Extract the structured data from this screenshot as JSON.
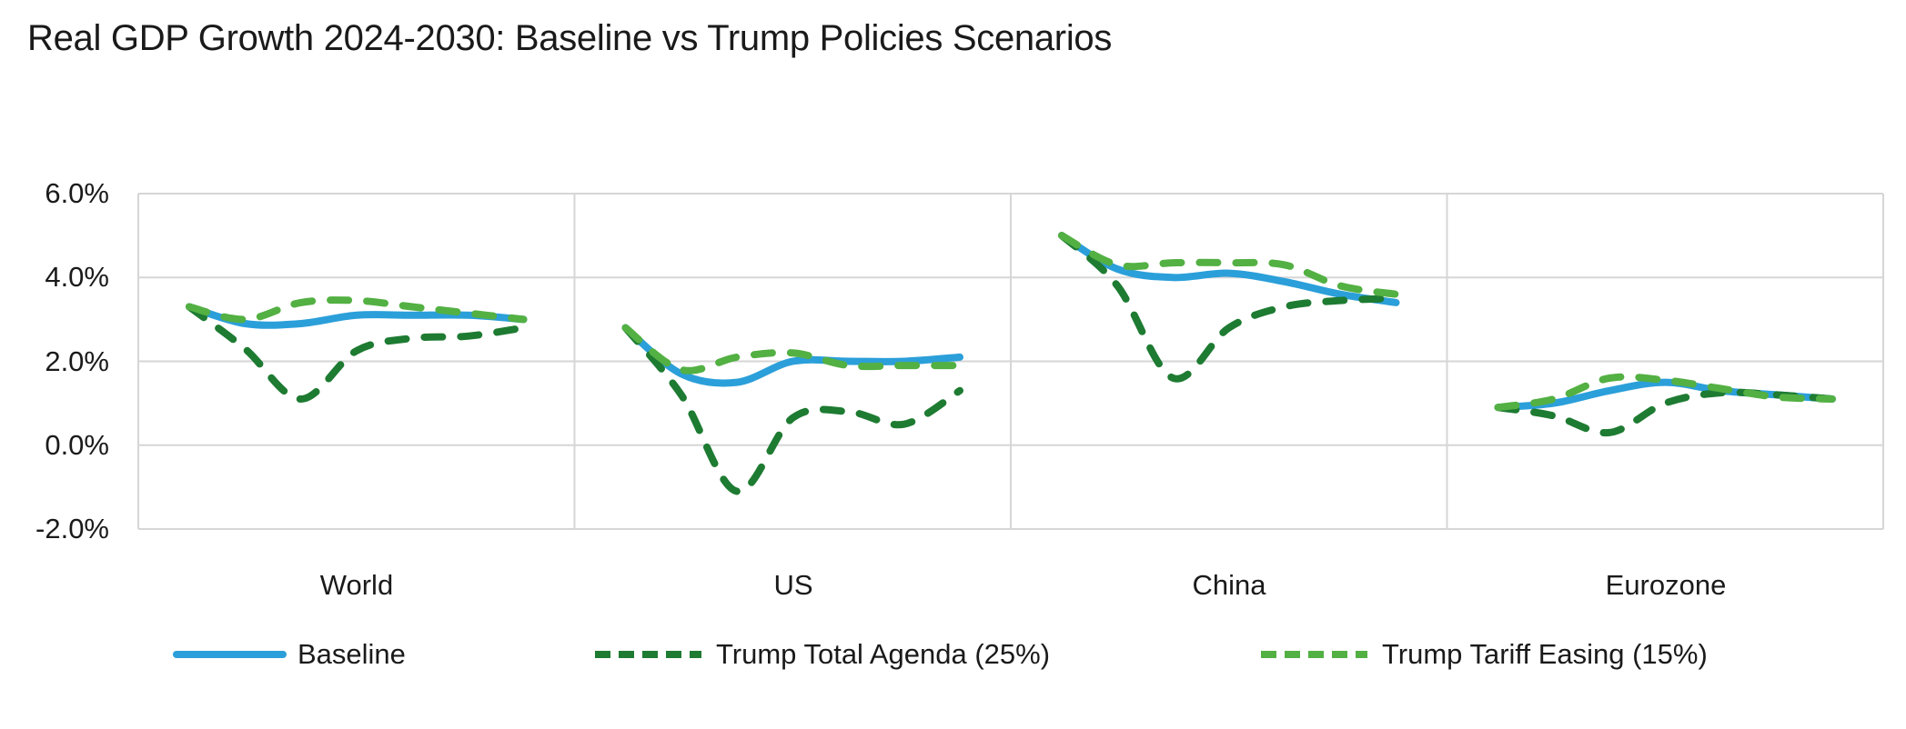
{
  "title": "Real GDP Growth 2024-2030: Baseline vs Trump Policies Scenarios",
  "y_axis": {
    "tick_labels": [
      "6.0%",
      "4.0%",
      "2.0%",
      "0.0%",
      "-2.0%"
    ],
    "tick_values": [
      6,
      4,
      2,
      0,
      -2
    ]
  },
  "x_axis": {
    "category_labels": [
      "World",
      "US",
      "China",
      "Eurozone"
    ]
  },
  "legend": {
    "items": [
      {
        "label": "Baseline",
        "color": "#2B9FD9",
        "style": "solid"
      },
      {
        "label": "Trump Total Agenda (25%)",
        "color": "#1E7B32",
        "style": "dashed"
      },
      {
        "label": "Trump Tariff Easing (15%)",
        "color": "#53B043",
        "style": "dashed"
      }
    ]
  },
  "colors": {
    "gridline": "#D6D6D6",
    "text": "#1A1A1A",
    "background": "#FFFFFF"
  },
  "chart_data": {
    "type": "line",
    "title": "Real GDP Growth 2024-2030: Baseline vs Trump Policies Scenarios",
    "panels": [
      "World",
      "US",
      "China",
      "Eurozone"
    ],
    "x_range_label": "2024-2030",
    "points_per_panel": 7,
    "ylim": [
      -2,
      6
    ],
    "y_tick_step": 2,
    "y_unit": "%",
    "grid": true,
    "legend_position": "bottom",
    "line_smoothing": true,
    "series": [
      {
        "name": "Baseline",
        "color": "#2B9FD9",
        "style": "solid",
        "values": {
          "World": [
            3.3,
            2.9,
            2.9,
            3.1,
            3.1,
            3.1,
            3.0
          ],
          "US": [
            2.8,
            1.7,
            1.5,
            2.0,
            2.0,
            2.0,
            2.1
          ],
          "China": [
            5.0,
            4.2,
            4.0,
            4.1,
            3.9,
            3.6,
            3.4
          ],
          "Eurozone": [
            0.9,
            1.0,
            1.3,
            1.5,
            1.3,
            1.2,
            1.1
          ]
        }
      },
      {
        "name": "Trump Total Agenda (25%)",
        "color": "#1E7B32",
        "style": "dashed",
        "values": {
          "World": [
            3.3,
            2.3,
            1.1,
            2.25,
            2.55,
            2.6,
            2.8
          ],
          "US": [
            2.8,
            1.2,
            -1.1,
            0.65,
            0.8,
            0.5,
            1.3
          ],
          "China": [
            5.0,
            3.8,
            1.6,
            2.8,
            3.3,
            3.45,
            3.5
          ],
          "Eurozone": [
            0.9,
            0.7,
            0.3,
            1.0,
            1.25,
            1.2,
            1.1
          ]
        }
      },
      {
        "name": "Trump Tariff Easing (15%)",
        "color": "#53B043",
        "style": "dashed",
        "values": {
          "World": [
            3.3,
            3.0,
            3.4,
            3.45,
            3.3,
            3.15,
            3.0
          ],
          "US": [
            2.8,
            1.8,
            2.1,
            2.2,
            1.9,
            1.9,
            1.9
          ],
          "China": [
            5.0,
            4.3,
            4.35,
            4.35,
            4.3,
            3.8,
            3.6
          ],
          "Eurozone": [
            0.9,
            1.1,
            1.6,
            1.55,
            1.35,
            1.15,
            1.1
          ]
        }
      }
    ]
  }
}
